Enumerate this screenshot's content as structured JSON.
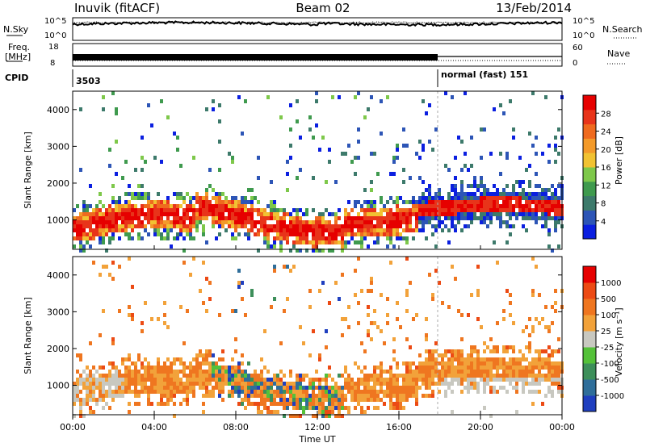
{
  "header": {
    "title_left": "Inuvik (fitACF)",
    "title_center": "Beam 02",
    "title_right": "13/Feb/2014"
  },
  "top_strip": {
    "left_label_1": "N.Sky",
    "left_label_2": "Freq.",
    "left_label_3": "[MHz]",
    "left_label_4": "CPID",
    "right_label_1": "N.Search",
    "right_label_2": "Nave",
    "nsky_ticks": [
      "10^5",
      "10^0"
    ],
    "nsearch_ticks": [
      "10^5",
      "10^0"
    ],
    "freq_ticks": [
      "18",
      "8"
    ],
    "nave_ticks": [
      "60",
      "0"
    ],
    "cpid_left": "3503",
    "cpid_right": "normal (fast) 151"
  },
  "chart_data": [
    {
      "type": "heatmap",
      "name": "power",
      "ylabel": "Slant Range [km]",
      "xlabel": "Time UT",
      "x_ticks": [
        "00:00",
        "04:00",
        "08:00",
        "12:00",
        "16:00",
        "20:00",
        "00:00"
      ],
      "y_ticks": [
        "1000",
        "2000",
        "3000",
        "4000"
      ],
      "ylim": [
        200,
        4500
      ],
      "colorbar": {
        "label": "Power [dB]",
        "ticks": [
          "4",
          "8",
          "12",
          "16",
          "20",
          "24",
          "28"
        ],
        "colors": [
          "#0b1fe0",
          "#2d55b6",
          "#3d7a6b",
          "#3f9a4e",
          "#7ec84a",
          "#f1c232",
          "#f39a2a",
          "#ef6a1e",
          "#e8341a",
          "#e60000"
        ]
      },
      "colors": {
        "low": "#0b1fe0",
        "mid": "#3f9a4e",
        "high": "#e60000"
      }
    },
    {
      "type": "heatmap",
      "name": "velocity",
      "ylabel": "Slant Range [km]",
      "xlabel": "Time UT",
      "x_ticks": [
        "00:00",
        "04:00",
        "08:00",
        "12:00",
        "16:00",
        "20:00",
        "00:00"
      ],
      "y_ticks": [
        "1000",
        "2000",
        "3000",
        "4000"
      ],
      "ylim": [
        200,
        4500
      ],
      "colorbar": {
        "label": "Velocity [m s⁻¹]",
        "ticks": [
          "1000",
          "500",
          "100",
          "25",
          "-25",
          "-100",
          "-500",
          "-1000"
        ],
        "colors": [
          "#1f3fbf",
          "#2f6e9a",
          "#3d8f5a",
          "#54c139",
          "#c8c8c0",
          "#f2a23a",
          "#ef7620",
          "#ec4a14",
          "#e60000"
        ]
      },
      "colors": {
        "positive": "#2f6e9a",
        "ground": "#c8c8c0",
        "negative": "#ef7620"
      }
    }
  ],
  "x_axis": {
    "title": "Time UT",
    "ticks": [
      "00:00",
      "04:00",
      "08:00",
      "12:00",
      "16:00",
      "20:00",
      "00:00"
    ]
  }
}
